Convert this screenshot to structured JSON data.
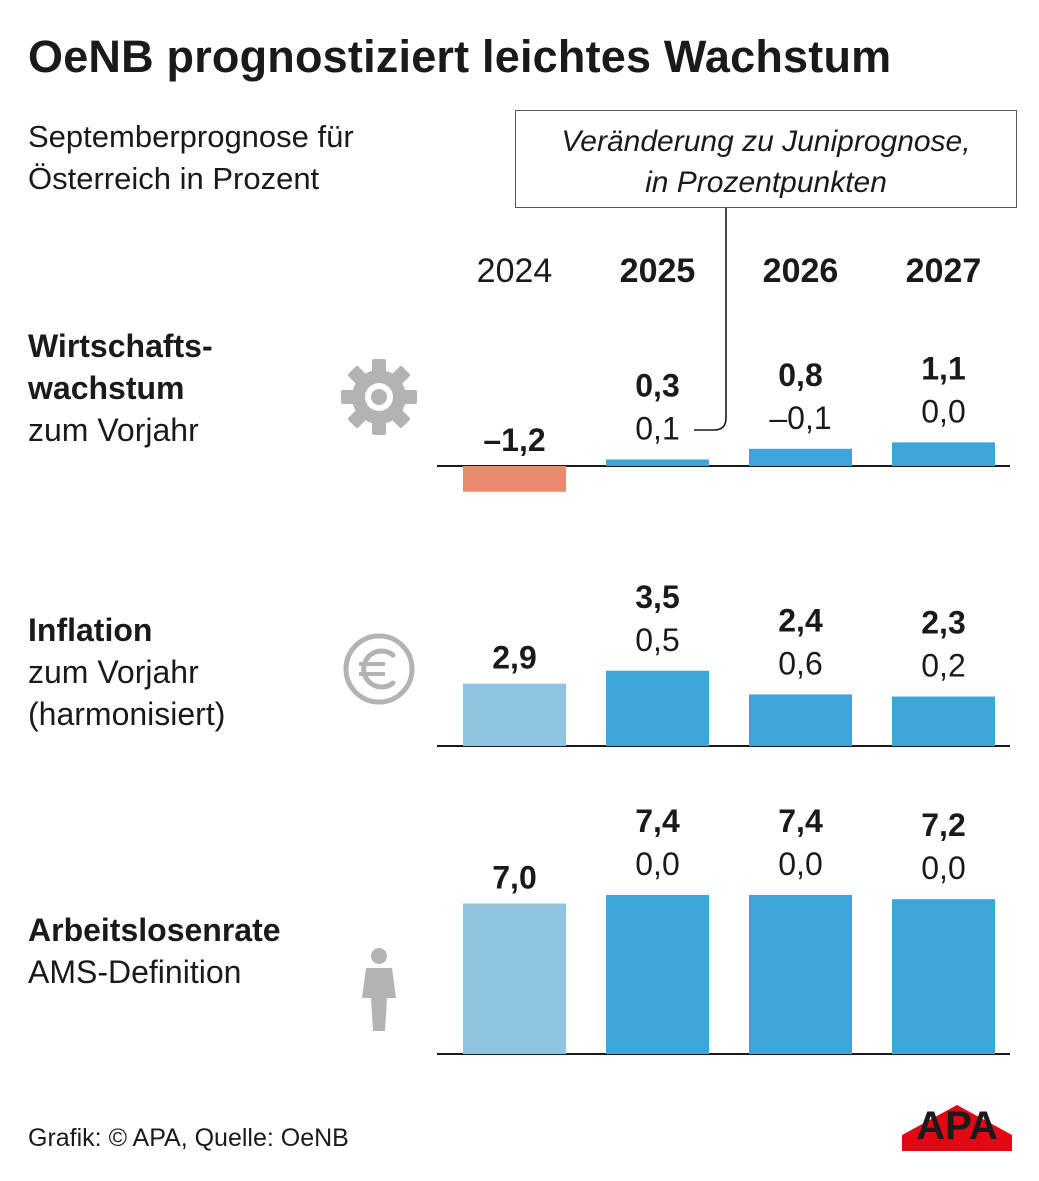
{
  "title": "OeNB prognostiziert leichtes Wachstum",
  "subtitle_lines": [
    "Septemberprognose für",
    "Österreich in Prozent"
  ],
  "note_lines": [
    "Veränderung zu Juniprognose,",
    "in Prozentpunkten"
  ],
  "footer": "Grafik: © APA, Quelle: OeNB",
  "logo_text": "APA",
  "colors": {
    "current": "#3ca6d6",
    "past": "#8ec4e2",
    "negative": "#e98b6e",
    "icon": "#b3b3b3",
    "axis": "#1a1a1a",
    "logo_red": "#e30613"
  },
  "chart_data": {
    "type": "bar",
    "categories": [
      "2024",
      "2025",
      "2026",
      "2027"
    ],
    "bold_categories": [
      "2025",
      "2026",
      "2027"
    ],
    "panels": [
      {
        "label_lines": [
          {
            "text": "Wirtschafts-",
            "bold": true
          },
          {
            "text": "wachstum",
            "bold": true
          },
          {
            "text": "zum Vorjahr",
            "bold": false
          }
        ],
        "icon": "gear-icon",
        "values": [
          -1.2,
          0.3,
          0.8,
          1.1
        ],
        "value_labels": [
          "–1,2",
          "0,3",
          "0,8",
          "1,1"
        ],
        "changes": [
          null,
          0.1,
          -0.1,
          0.0
        ],
        "change_labels": [
          "",
          "0,1",
          "–0,1",
          "0,0"
        ]
      },
      {
        "label_lines": [
          {
            "text": "Inflation",
            "bold": true
          },
          {
            "text": "zum Vorjahr",
            "bold": false
          },
          {
            "text": "(harmonisiert)",
            "bold": false
          }
        ],
        "icon": "euro-icon",
        "values": [
          2.9,
          3.5,
          2.4,
          2.3
        ],
        "value_labels": [
          "2,9",
          "3,5",
          "2,4",
          "2,3"
        ],
        "changes": [
          null,
          0.5,
          0.6,
          0.2
        ],
        "change_labels": [
          "",
          "0,5",
          "0,6",
          "0,2"
        ]
      },
      {
        "label_lines": [
          {
            "text": "Arbeitslosenrate",
            "bold": true
          },
          {
            "text": "AMS-Definition",
            "bold": false
          }
        ],
        "icon": "person-icon",
        "values": [
          7.0,
          7.4,
          7.4,
          7.2
        ],
        "value_labels": [
          "7,0",
          "7,4",
          "7,4",
          "7,2"
        ],
        "changes": [
          null,
          0.0,
          0.0,
          0.0
        ],
        "change_labels": [
          "",
          "0,0",
          "0,0",
          "0,0"
        ]
      }
    ]
  }
}
